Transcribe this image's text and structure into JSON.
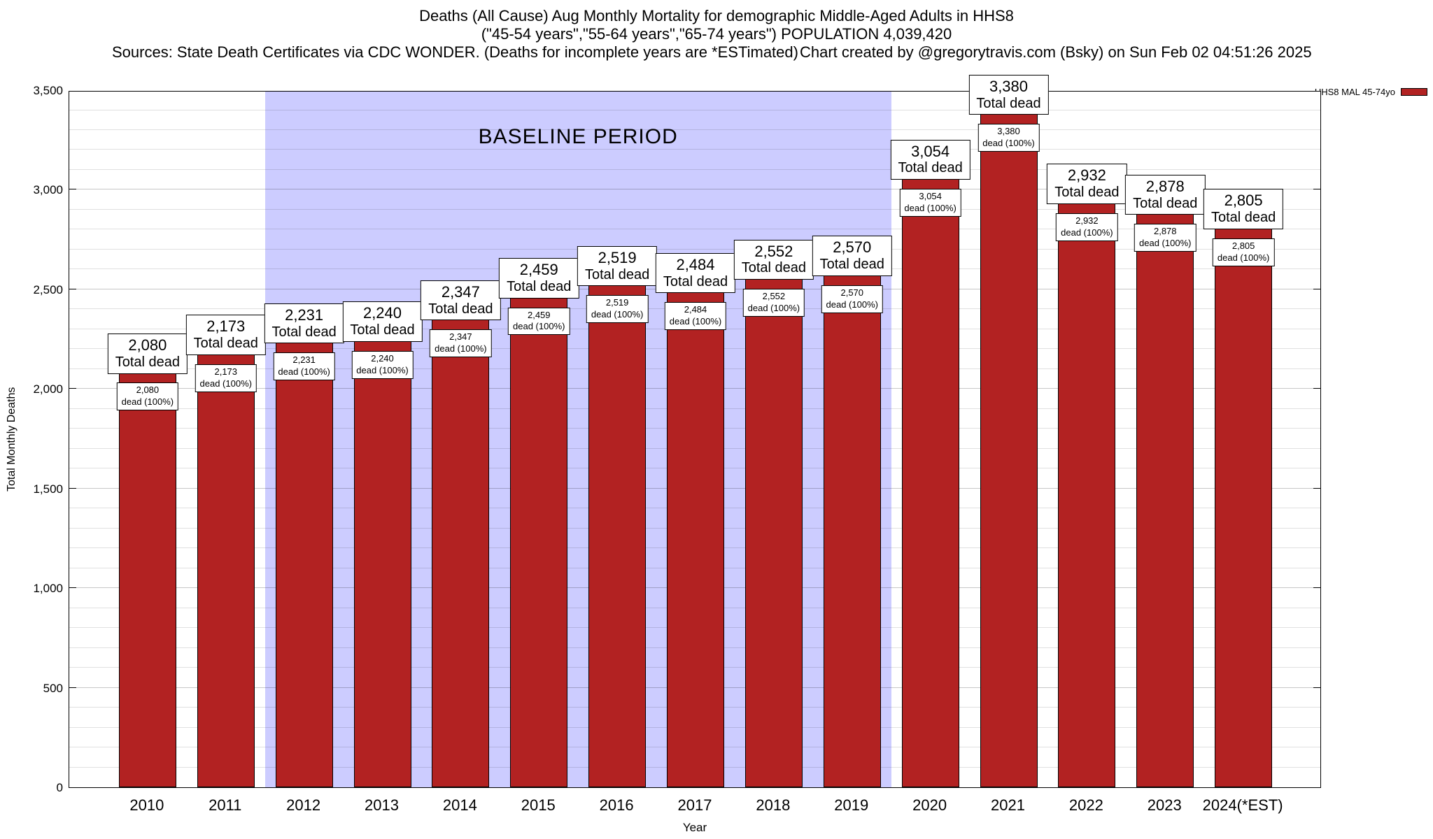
{
  "header": {
    "title_line1": "Deaths (All Cause) Aug Monthly Mortality for demographic Middle-Aged Adults in HHS8",
    "title_line2": "(\"45-54 years\",\"55-64 years\",\"65-74 years\") POPULATION 4,039,420",
    "sources": "Sources: State Death Certificates via CDC WONDER. (Deaths for incomplete years are *ESTimated)",
    "credit": "Chart created by @gregorytravis.com (Bsky) on Sun Feb 02 04:51:26 2025"
  },
  "legend": {
    "label": "HHS8 MAL 45-74yo",
    "swatch_color": "#b22222"
  },
  "chart_data": {
    "type": "bar",
    "title": "Deaths (All Cause) Aug Monthly Mortality for demographic Middle-Aged Adults in HHS8",
    "xlabel": "Year",
    "ylabel": "Total Monthly Deaths",
    "ylim": [
      0,
      3500
    ],
    "ytick_step": 500,
    "grid_minor_step": 100,
    "grid": true,
    "legend_position": "top-right",
    "categories": [
      "2010",
      "2011",
      "2012",
      "2013",
      "2014",
      "2015",
      "2016",
      "2017",
      "2018",
      "2019",
      "2020",
      "2021",
      "2022",
      "2023",
      "2024(*EST)"
    ],
    "values": [
      2080,
      2173,
      2231,
      2240,
      2347,
      2459,
      2519,
      2484,
      2552,
      2570,
      3054,
      3380,
      2932,
      2878,
      2805
    ],
    "bar_color": "#b22222",
    "bar_label_suffix_top": "Total dead",
    "bar_label_suffix_inner": "dead (100%)",
    "ytick_labels": [
      "0",
      "500",
      "1,000",
      "1,500",
      "2,000",
      "2,500",
      "3,000",
      "3,500"
    ],
    "baseline_region": {
      "label": "BASELINE PERIOD",
      "start_category": "2012",
      "end_category": "2019",
      "color": "#ccccff"
    }
  }
}
